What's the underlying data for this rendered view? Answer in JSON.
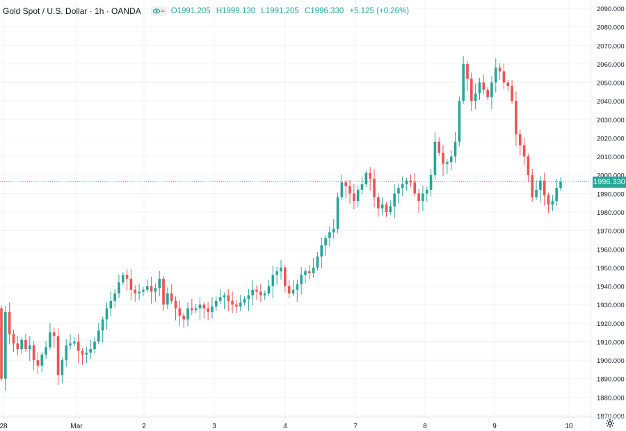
{
  "header": {
    "title": "Gold Spot / U.S. Dollar · 1h · OANDA",
    "eye_icon": "eye-icon",
    "wave_icon": "≈",
    "ohlc": {
      "o_label": "O",
      "o": "1991.205",
      "h_label": "H",
      "h": "1999.130",
      "l_label": "L",
      "l": "1991.205",
      "c_label": "C",
      "c": "1996.330",
      "change": "+5.125 (+0.26%)"
    }
  },
  "last_price_label": "1996.330",
  "settings_icon": "gear-icon",
  "colors": {
    "up": "#26a69a",
    "down": "#ef5350",
    "grid": "#f0f3fa",
    "axis_text": "#131722"
  },
  "chart_data": {
    "type": "candlestick",
    "x_labels": [
      "28",
      "Mar",
      "2",
      "3",
      "4",
      "7",
      "8",
      "9",
      "10"
    ],
    "y_ticks": [
      1870,
      1880,
      1890,
      1900,
      1910,
      1920,
      1930,
      1940,
      1950,
      1960,
      1970,
      1980,
      1990,
      2000,
      2010,
      2020,
      2030,
      2040,
      2050,
      2060,
      2070,
      2080,
      2090
    ],
    "ylim": [
      1868,
      2092
    ],
    "last_close": 1996.33,
    "closes": [
      1890,
      1926,
      1914,
      1909,
      1906,
      1911,
      1906,
      1908,
      1900,
      1897,
      1903,
      1907,
      1915,
      1913,
      1892,
      1900,
      1908,
      1909,
      1910,
      1905,
      1903,
      1904,
      1906,
      1910,
      1916,
      1922,
      1928,
      1932,
      1936,
      1942,
      1946,
      1944,
      1938,
      1936,
      1937,
      1938,
      1940,
      1937,
      1939,
      1944,
      1930,
      1936,
      1932,
      1928,
      1924,
      1922,
      1928,
      1927,
      1928,
      1930,
      1928,
      1926,
      1929,
      1932,
      1934,
      1935,
      1932,
      1930,
      1929,
      1931,
      1933,
      1935,
      1938,
      1937,
      1935,
      1936,
      1940,
      1946,
      1948,
      1950,
      1940,
      1936,
      1938,
      1941,
      1946,
      1948,
      1947,
      1950,
      1956,
      1962,
      1966,
      1969,
      1971,
      1988,
      1996,
      1994,
      1990,
      1986,
      1992,
      1995,
      2001,
      1998,
      1988,
      1982,
      1984,
      1980,
      1983,
      1990,
      1993,
      1995,
      1997,
      1996,
      1990,
      1986,
      1990,
      1992,
      2000,
      2018,
      2012,
      2006,
      2007,
      2010,
      2018,
      2040,
      2060,
      2052,
      2040,
      2044,
      2050,
      2046,
      2042,
      2050,
      2058,
      2056,
      2050,
      2048,
      2040,
      2022,
      2016,
      2010,
      2000,
      1988,
      1992,
      1997,
      1989,
      1984,
      1986,
      1993,
      1996.33
    ]
  }
}
